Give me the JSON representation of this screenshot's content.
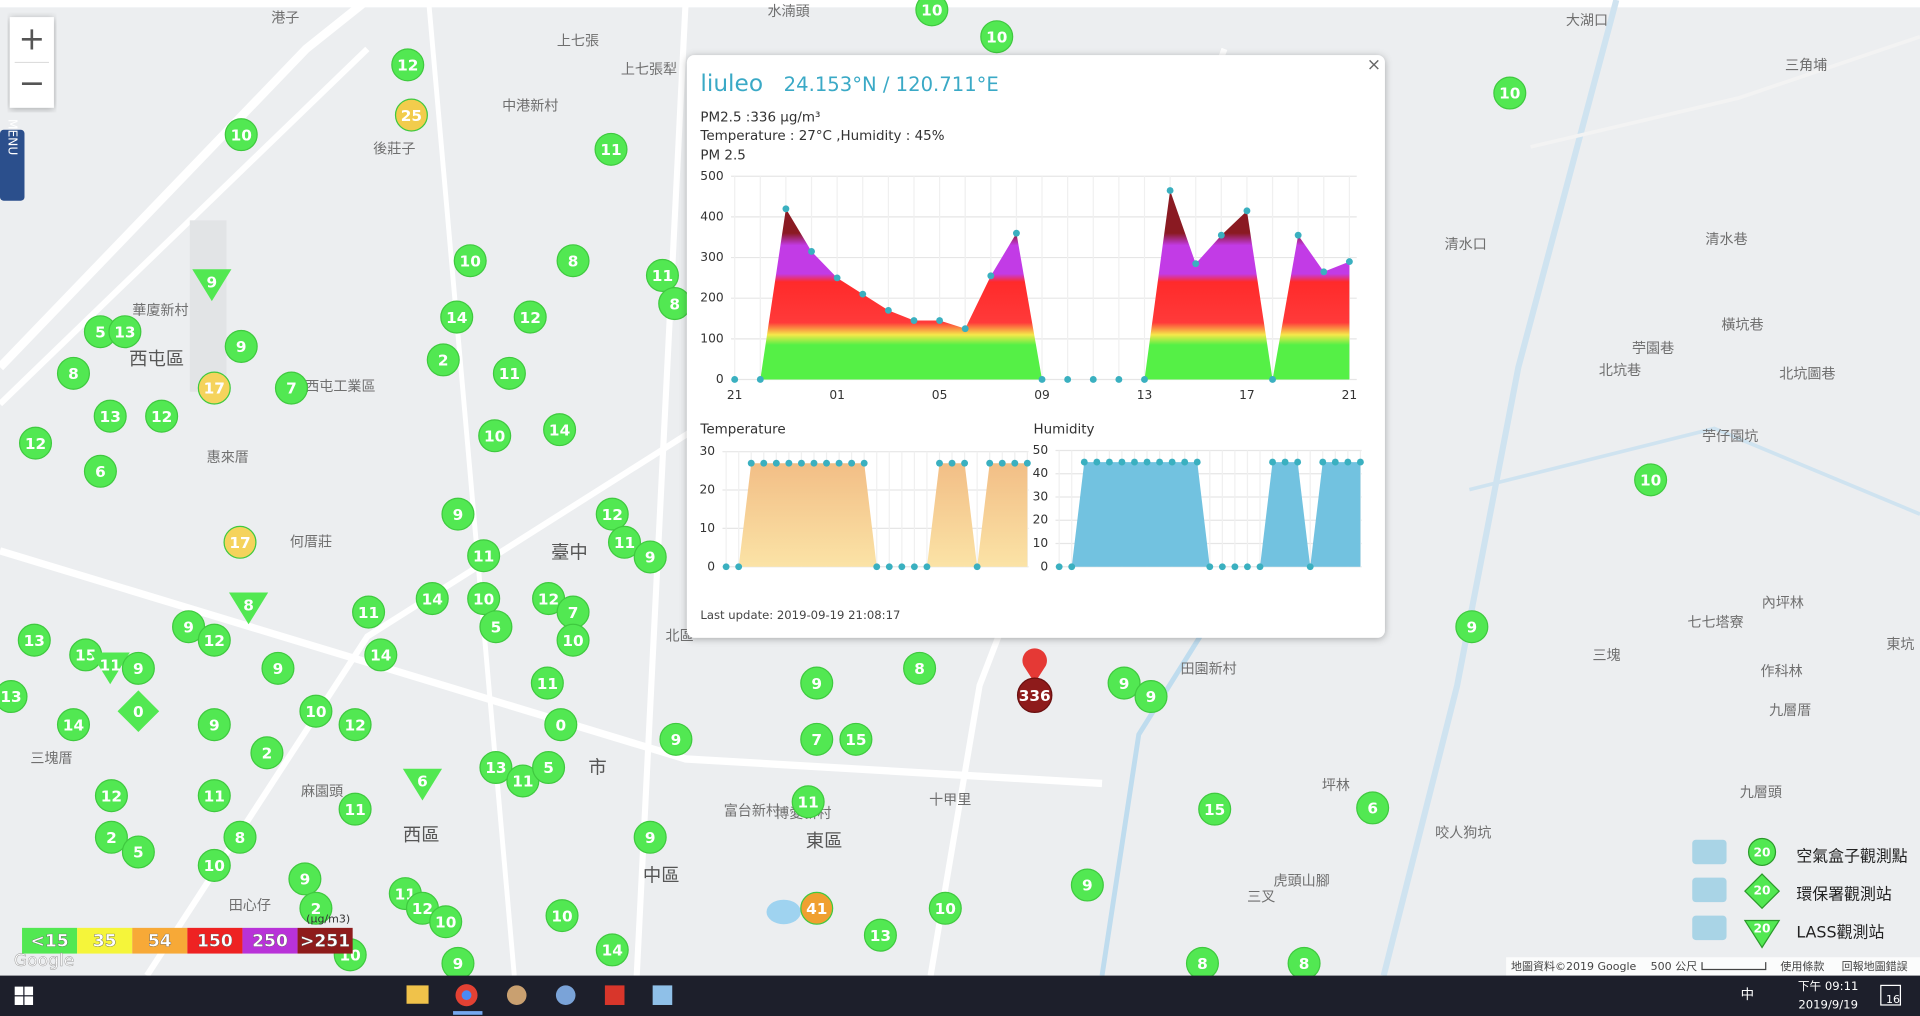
{
  "map": {
    "zoom_in": "+",
    "zoom_out": "−",
    "menu": "MENU",
    "attribution": "地圖資料©2019 Google",
    "scale": "500 公尺",
    "terms": "使用條款",
    "report": "回報地圖錯誤",
    "google": "Google",
    "labels": [
      "港子",
      "水湳頭",
      "大湖口",
      "三角埔",
      "上七張",
      "上七張犁",
      "中港新村",
      "後莊子",
      "華廈新村",
      "西屯區",
      "西屯工業區",
      "惠來厝",
      "何厝莊",
      "臺中",
      "北區",
      "市",
      "東區",
      "西區",
      "中區",
      "十甲里",
      "三塊厝",
      "田心仔",
      "麻園頭",
      "博愛新村",
      "富台新村",
      "田園新村",
      "三叉",
      "虎頭山腳",
      "坪林",
      "咬人狗坑",
      "九層頭",
      "九層厝",
      "作科林",
      "三塊",
      "七七塔寮",
      "內坪林",
      "東坑",
      "清水口",
      "清水巷",
      "橫坑巷",
      "苧園巷",
      "北坑巷",
      "北坑圖巷",
      "苧仔園坑"
    ]
  },
  "marker_defaults": {
    "kind": "box",
    "color": "#52e852"
  },
  "markers": [
    {
      "value": 10
    },
    {
      "value": 10
    },
    {
      "value": 12
    },
    {
      "value": 25,
      "color": "#f2cc4c"
    },
    {
      "value": 10
    },
    {
      "value": 11
    },
    {
      "value": 10
    },
    {
      "value": 9,
      "kind": "lass"
    },
    {
      "value": 10
    },
    {
      "value": 8
    },
    {
      "value": 11
    },
    {
      "value": 8
    },
    {
      "value": 5
    },
    {
      "value": 13
    },
    {
      "value": 14
    },
    {
      "value": 12
    },
    {
      "value": 9
    },
    {
      "value": 2
    },
    {
      "value": 11
    },
    {
      "value": 8
    },
    {
      "value": 17,
      "color": "#f5d35c"
    },
    {
      "value": 7
    },
    {
      "value": 13
    },
    {
      "value": 12
    },
    {
      "value": 12
    },
    {
      "value": 10
    },
    {
      "value": 14
    },
    {
      "value": 6
    },
    {
      "value": 9
    },
    {
      "value": 12
    },
    {
      "value": 11
    },
    {
      "value": 9
    },
    {
      "value": 17,
      "color": "#f5d35c"
    },
    {
      "value": 11
    },
    {
      "value": 8,
      "kind": "lass"
    },
    {
      "value": 11
    },
    {
      "value": 14
    },
    {
      "value": 10
    },
    {
      "value": 12
    },
    {
      "value": 7
    },
    {
      "value": 5
    },
    {
      "value": 10
    },
    {
      "value": 9
    },
    {
      "value": 12
    },
    {
      "value": 13
    },
    {
      "value": 15
    },
    {
      "value": 11,
      "kind": "lass"
    },
    {
      "value": 9
    },
    {
      "value": 9
    },
    {
      "value": 14
    },
    {
      "value": 0,
      "kind": "epa"
    },
    {
      "value": 11
    },
    {
      "value": 9
    },
    {
      "value": 8
    },
    {
      "value": 9
    },
    {
      "value": 9
    },
    {
      "value": 13
    },
    {
      "value": 14
    },
    {
      "value": 9
    },
    {
      "value": 10
    },
    {
      "value": 12
    },
    {
      "value": 0
    },
    {
      "value": 2
    },
    {
      "value": 9
    },
    {
      "value": 7
    },
    {
      "value": 15
    },
    {
      "value": 6,
      "kind": "lass"
    },
    {
      "value": 13
    },
    {
      "value": 11
    },
    {
      "value": 5
    },
    {
      "value": 12
    },
    {
      "value": 11
    },
    {
      "value": 11
    },
    {
      "value": 11
    },
    {
      "value": 15
    },
    {
      "value": 6
    },
    {
      "value": 2
    },
    {
      "value": 5
    },
    {
      "value": 8
    },
    {
      "value": 10
    },
    {
      "value": 9
    },
    {
      "value": 9
    },
    {
      "value": 11
    },
    {
      "value": 12
    },
    {
      "value": 10
    },
    {
      "value": 10
    },
    {
      "value": 2
    },
    {
      "value": 41,
      "color": "#f0a030"
    },
    {
      "value": 10
    },
    {
      "value": 9
    },
    {
      "value": 13
    },
    {
      "value": 14
    },
    {
      "value": 9
    },
    {
      "value": 10
    },
    {
      "value": 8
    },
    {
      "value": 8
    },
    {
      "value": 9
    },
    {
      "value": 10
    },
    {
      "value": 336,
      "kind": "pin",
      "color": "#8e1b1b"
    }
  ],
  "popup": {
    "name": "liuleo",
    "coords": "24.153°N / 120.711°E",
    "pm_line": "PM2.5 :336 μg/m³",
    "env_line": "Temperature : 27°C ,Humidity : 45%",
    "close": "×",
    "last_update": "Last update: 2019-09-19 21:08:17",
    "charts": [
      {
        "type": "area",
        "title": "PM 2.5",
        "categories": [
          "21",
          null,
          null,
          null,
          "01",
          null,
          null,
          null,
          "05",
          null,
          null,
          null,
          "09",
          null,
          null,
          null,
          "13",
          null,
          null,
          null,
          "17",
          null,
          null,
          null,
          "21"
        ],
        "values": [
          0,
          0,
          420,
          315,
          250,
          210,
          170,
          145,
          145,
          125,
          255,
          360,
          0,
          0,
          0,
          0,
          0,
          465,
          285,
          355,
          415,
          0,
          355,
          265,
          290
        ],
        "ylim": [
          0,
          500
        ],
        "yticks": [
          0,
          100,
          200,
          300,
          400,
          500
        ],
        "color": "gradient"
      },
      {
        "type": "area",
        "title": "Temperature",
        "values": [
          0,
          0,
          27,
          27,
          27,
          27,
          27,
          27,
          27,
          27,
          27,
          27,
          0,
          0,
          0,
          0,
          0,
          27,
          27,
          27,
          0,
          27,
          27,
          27,
          27
        ],
        "ylim": [
          0,
          30
        ],
        "yticks": [
          0,
          10,
          20,
          30
        ],
        "color": "#f4c48c"
      },
      {
        "type": "area",
        "title": "Humidity",
        "values": [
          0,
          0,
          45,
          45,
          45,
          45,
          45,
          45,
          45,
          45,
          45,
          45,
          0,
          0,
          0,
          0,
          0,
          45,
          45,
          45,
          0,
          45,
          45,
          45,
          45
        ],
        "ylim": [
          0,
          50
        ],
        "yticks": [
          0,
          10,
          20,
          30,
          40,
          50
        ],
        "color": "#72c2e0"
      }
    ]
  },
  "scale_legend": {
    "unit": "(μg/m3)",
    "levels": [
      {
        "label": "<15",
        "color": "#52e852"
      },
      {
        "label": "35",
        "color": "#f5f53a"
      },
      {
        "label": "54",
        "color": "#f7a937"
      },
      {
        "label": "150",
        "color": "#ee2222"
      },
      {
        "label": "250",
        "color": "#b832d8"
      },
      {
        "label": ">251",
        "color": "#8e1b1b"
      }
    ]
  },
  "station_legend": [
    {
      "label": "空氣盒子觀測點",
      "badge": "20"
    },
    {
      "label": "環保署觀測站",
      "badge": "20"
    },
    {
      "label": "LASS觀測站",
      "badge": "20"
    }
  ],
  "taskbar": {
    "time": "下午 09:11",
    "date": "2019/9/19",
    "ime": "中",
    "notify": "16"
  }
}
